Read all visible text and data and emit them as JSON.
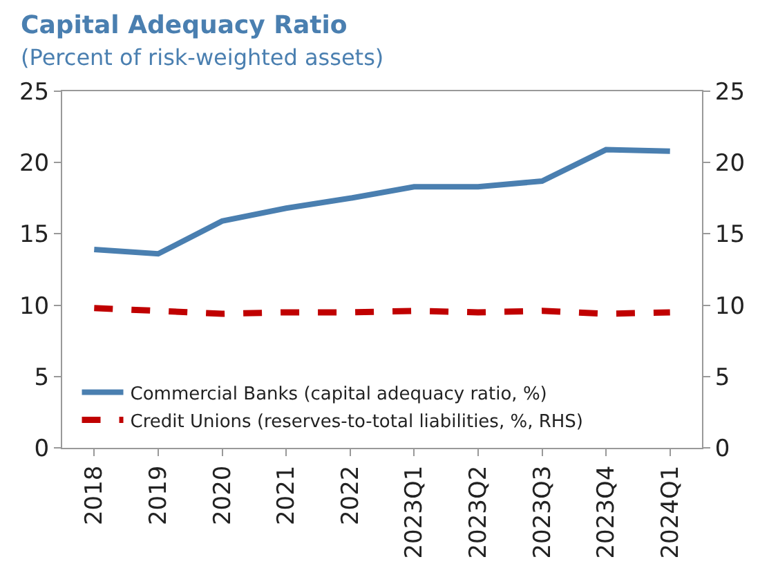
{
  "chart_data": {
    "type": "line",
    "title": "Capital Adequacy Ratio",
    "subtitle": "(Percent of risk-weighted assets)",
    "categories": [
      "2018",
      "2019",
      "2020",
      "2021",
      "2022",
      "2023Q1",
      "2023Q2",
      "2023Q3",
      "2023Q4",
      "2024Q1"
    ],
    "series": [
      {
        "name": "Commercial Banks (capital adequacy ratio, %)",
        "color": "#4a7fb0",
        "values": [
          13.9,
          13.6,
          15.9,
          16.8,
          17.5,
          18.3,
          18.3,
          18.7,
          20.9,
          20.8
        ],
        "line_style": "solid"
      },
      {
        "name": "Credit Unions (reserves-to-total liabilities, %, RHS)",
        "color": "#c00000",
        "values": [
          9.8,
          9.6,
          9.4,
          9.5,
          9.5,
          9.6,
          9.5,
          9.6,
          9.4,
          9.5
        ],
        "line_style": "dashed",
        "axis": "y2"
      }
    ],
    "ylim": [
      0,
      25
    ],
    "yticks": [
      0,
      5,
      10,
      15,
      20,
      25
    ],
    "y2lim": [
      0,
      25
    ],
    "y2ticks": [
      0,
      5,
      10,
      15,
      20,
      25
    ],
    "legend": "bottom left",
    "marker": "none"
  }
}
